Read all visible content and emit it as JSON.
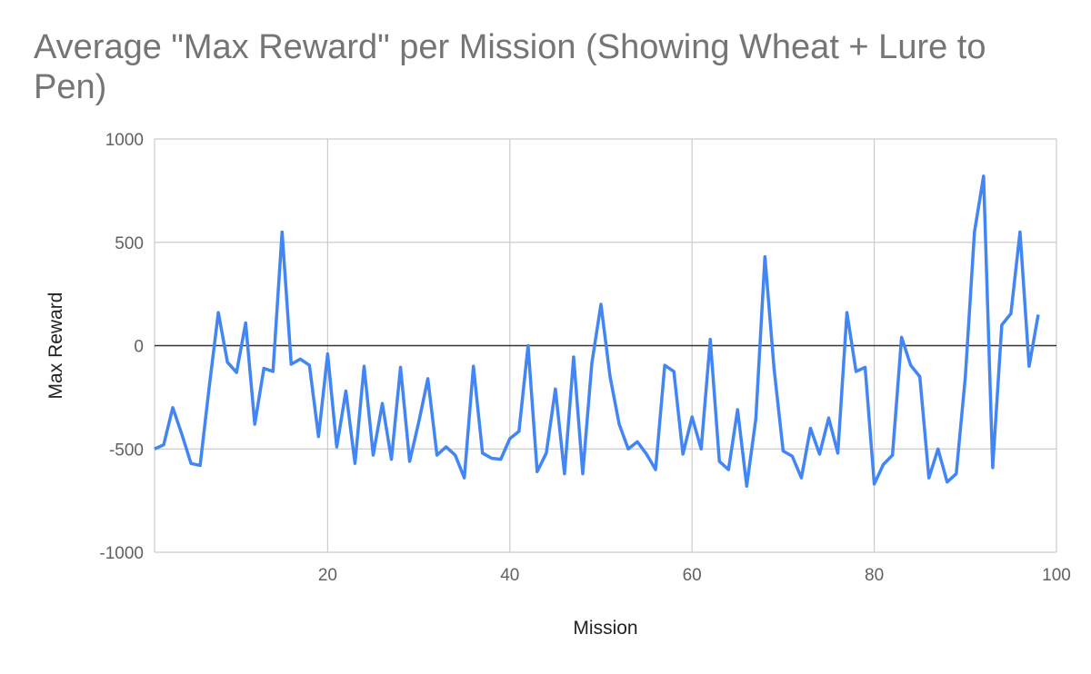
{
  "chart_data": {
    "type": "line",
    "title": "Average \"Max Reward\" per Mission (Showing Wheat + Lure to Pen)",
    "xlabel": "Mission",
    "ylabel": "Max Reward",
    "xlim": [
      1,
      100
    ],
    "ylim": [
      -1000,
      1000
    ],
    "x_ticks": [
      20,
      40,
      60,
      80,
      100
    ],
    "y_ticks": [
      -1000,
      -500,
      0,
      500,
      1000
    ],
    "grid": true,
    "legend": "none",
    "series": [
      {
        "color": "#4285f4",
        "x": [
          1,
          2,
          3,
          4,
          5,
          6,
          7,
          8,
          9,
          10,
          11,
          12,
          13,
          14,
          15,
          16,
          17,
          18,
          19,
          20,
          21,
          22,
          23,
          24,
          25,
          26,
          27,
          28,
          29,
          30,
          31,
          32,
          33,
          34,
          35,
          36,
          37,
          38,
          39,
          40,
          41,
          42,
          43,
          44,
          45,
          46,
          47,
          48,
          49,
          50,
          51,
          52,
          53,
          54,
          55,
          56,
          57,
          58,
          59,
          60,
          61,
          62,
          63,
          64,
          65,
          66,
          67,
          68,
          69,
          70,
          71,
          72,
          73,
          74,
          75,
          76,
          77,
          78,
          79,
          80,
          81,
          82,
          83,
          84,
          85,
          86,
          87,
          88,
          89,
          90,
          91,
          92,
          93,
          94,
          95,
          96,
          97,
          98
        ],
        "values": [
          -500,
          -480,
          -300,
          -430,
          -570,
          -580,
          -200,
          160,
          -80,
          -130,
          110,
          -380,
          -110,
          -125,
          550,
          -90,
          -65,
          -95,
          -440,
          -40,
          -490,
          -220,
          -570,
          -100,
          -530,
          -280,
          -550,
          -105,
          -560,
          -370,
          -160,
          -530,
          -490,
          -530,
          -640,
          -100,
          -520,
          -545,
          -550,
          -450,
          -415,
          0,
          -610,
          -520,
          -210,
          -620,
          -55,
          -620,
          -85,
          200,
          -150,
          -380,
          -500,
          -465,
          -525,
          -600,
          -95,
          -125,
          -525,
          -345,
          -500,
          30,
          -560,
          -600,
          -310,
          -680,
          -355,
          430,
          -110,
          -510,
          -535,
          -640,
          -400,
          -525,
          -350,
          -520,
          160,
          -125,
          -105,
          -670,
          -575,
          -530,
          40,
          -95,
          -150,
          -640,
          -500,
          -660,
          -620,
          -150,
          550,
          820,
          -590,
          100,
          155,
          550,
          -100,
          150
        ]
      }
    ]
  }
}
